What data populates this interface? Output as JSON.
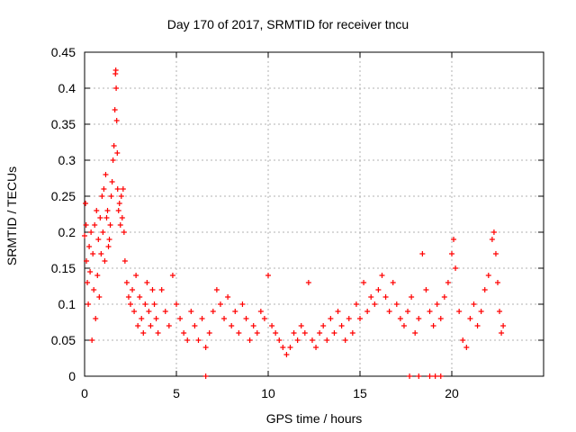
{
  "chart_data": {
    "type": "scatter",
    "title": "Day 170 of 2017, SRMTID for receiver tncu",
    "xlabel": "GPS time / hours",
    "ylabel": "SRMTID / TECUs",
    "xlim": [
      0,
      25
    ],
    "ylim": [
      0,
      0.45
    ],
    "x_ticks": [
      0,
      5,
      10,
      15,
      20
    ],
    "x_tick_labels": [
      "0",
      "5",
      "10",
      "15",
      "20"
    ],
    "y_ticks": [
      0,
      0.05,
      0.1,
      0.15,
      0.2,
      0.25,
      0.3,
      0.35,
      0.4,
      0.45
    ],
    "y_tick_labels": [
      "0",
      "0.05",
      "0.1",
      "0.15",
      "0.2",
      "0.25",
      "0.3",
      "0.35",
      "0.4",
      "0.45"
    ],
    "grid": true,
    "legend": "none",
    "marker": "+",
    "colors": {
      "series": "#ff0000",
      "grid": "#b0b0b0",
      "axis": "#000000"
    },
    "series": [
      {
        "name": "SRMTID",
        "points": [
          [
            0.0,
            0.195
          ],
          [
            0.05,
            0.24
          ],
          [
            0.08,
            0.21
          ],
          [
            0.1,
            0.16
          ],
          [
            0.15,
            0.13
          ],
          [
            0.2,
            0.1
          ],
          [
            0.25,
            0.18
          ],
          [
            0.3,
            0.145
          ],
          [
            0.35,
            0.2
          ],
          [
            0.4,
            0.05
          ],
          [
            0.45,
            0.17
          ],
          [
            0.5,
            0.12
          ],
          [
            0.55,
            0.21
          ],
          [
            0.6,
            0.08
          ],
          [
            0.65,
            0.23
          ],
          [
            0.7,
            0.14
          ],
          [
            0.75,
            0.19
          ],
          [
            0.8,
            0.11
          ],
          [
            0.85,
            0.22
          ],
          [
            0.9,
            0.17
          ],
          [
            0.95,
            0.25
          ],
          [
            1.0,
            0.2
          ],
          [
            1.05,
            0.26
          ],
          [
            1.1,
            0.16
          ],
          [
            1.15,
            0.28
          ],
          [
            1.2,
            0.22
          ],
          [
            1.25,
            0.23
          ],
          [
            1.3,
            0.18
          ],
          [
            1.35,
            0.19
          ],
          [
            1.4,
            0.21
          ],
          [
            1.45,
            0.25
          ],
          [
            1.5,
            0.27
          ],
          [
            1.55,
            0.3
          ],
          [
            1.6,
            0.32
          ],
          [
            1.65,
            0.37
          ],
          [
            1.68,
            0.42
          ],
          [
            1.7,
            0.425
          ],
          [
            1.72,
            0.4
          ],
          [
            1.75,
            0.355
          ],
          [
            1.78,
            0.31
          ],
          [
            1.8,
            0.26
          ],
          [
            1.85,
            0.23
          ],
          [
            1.9,
            0.24
          ],
          [
            1.95,
            0.21
          ],
          [
            2.0,
            0.25
          ],
          [
            2.05,
            0.22
          ],
          [
            2.1,
            0.26
          ],
          [
            2.15,
            0.2
          ],
          [
            2.2,
            0.16
          ],
          [
            2.3,
            0.13
          ],
          [
            2.4,
            0.11
          ],
          [
            2.5,
            0.1
          ],
          [
            2.6,
            0.12
          ],
          [
            2.7,
            0.09
          ],
          [
            2.8,
            0.14
          ],
          [
            2.9,
            0.07
          ],
          [
            3.0,
            0.11
          ],
          [
            3.1,
            0.08
          ],
          [
            3.2,
            0.06
          ],
          [
            3.3,
            0.1
          ],
          [
            3.4,
            0.13
          ],
          [
            3.5,
            0.09
          ],
          [
            3.6,
            0.07
          ],
          [
            3.7,
            0.12
          ],
          [
            3.8,
            0.1
          ],
          [
            3.9,
            0.08
          ],
          [
            4.0,
            0.06
          ],
          [
            4.2,
            0.12
          ],
          [
            4.4,
            0.09
          ],
          [
            4.6,
            0.07
          ],
          [
            4.8,
            0.14
          ],
          [
            5.0,
            0.1
          ],
          [
            5.2,
            0.08
          ],
          [
            5.4,
            0.06
          ],
          [
            5.6,
            0.05
          ],
          [
            5.8,
            0.09
          ],
          [
            6.0,
            0.07
          ],
          [
            6.2,
            0.05
          ],
          [
            6.4,
            0.08
          ],
          [
            6.6,
            0.04
          ],
          [
            6.8,
            0.06
          ],
          [
            7.0,
            0.09
          ],
          [
            7.2,
            0.12
          ],
          [
            7.4,
            0.1
          ],
          [
            7.6,
            0.08
          ],
          [
            7.8,
            0.11
          ],
          [
            8.0,
            0.07
          ],
          [
            8.2,
            0.09
          ],
          [
            8.4,
            0.06
          ],
          [
            8.6,
            0.1
          ],
          [
            8.8,
            0.08
          ],
          [
            9.0,
            0.05
          ],
          [
            9.2,
            0.07
          ],
          [
            9.4,
            0.06
          ],
          [
            9.6,
            0.09
          ],
          [
            9.8,
            0.08
          ],
          [
            10.0,
            0.14
          ],
          [
            10.2,
            0.07
          ],
          [
            10.4,
            0.06
          ],
          [
            10.6,
            0.05
          ],
          [
            10.8,
            0.04
          ],
          [
            11.0,
            0.03
          ],
          [
            11.2,
            0.04
          ],
          [
            11.4,
            0.06
          ],
          [
            11.6,
            0.05
          ],
          [
            11.8,
            0.07
          ],
          [
            12.0,
            0.06
          ],
          [
            12.2,
            0.13
          ],
          [
            12.4,
            0.05
          ],
          [
            12.6,
            0.04
          ],
          [
            12.8,
            0.06
          ],
          [
            13.0,
            0.07
          ],
          [
            13.2,
            0.05
          ],
          [
            13.4,
            0.08
          ],
          [
            13.6,
            0.06
          ],
          [
            13.8,
            0.09
          ],
          [
            14.0,
            0.07
          ],
          [
            14.2,
            0.05
          ],
          [
            14.4,
            0.08
          ],
          [
            14.6,
            0.06
          ],
          [
            14.8,
            0.1
          ],
          [
            15.0,
            0.08
          ],
          [
            15.2,
            0.13
          ],
          [
            15.4,
            0.09
          ],
          [
            15.6,
            0.11
          ],
          [
            15.8,
            0.1
          ],
          [
            16.0,
            0.12
          ],
          [
            16.2,
            0.14
          ],
          [
            16.4,
            0.11
          ],
          [
            16.6,
            0.09
          ],
          [
            16.8,
            0.13
          ],
          [
            17.0,
            0.1
          ],
          [
            17.2,
            0.08
          ],
          [
            17.4,
            0.07
          ],
          [
            17.6,
            0.09
          ],
          [
            17.8,
            0.11
          ],
          [
            18.0,
            0.06
          ],
          [
            18.2,
            0.08
          ],
          [
            18.4,
            0.17
          ],
          [
            18.6,
            0.12
          ],
          [
            18.8,
            0.09
          ],
          [
            19.0,
            0.07
          ],
          [
            19.2,
            0.1
          ],
          [
            19.4,
            0.08
          ],
          [
            19.6,
            0.11
          ],
          [
            19.8,
            0.13
          ],
          [
            20.0,
            0.17
          ],
          [
            20.1,
            0.19
          ],
          [
            20.2,
            0.15
          ],
          [
            20.4,
            0.09
          ],
          [
            20.6,
            0.05
          ],
          [
            20.8,
            0.04
          ],
          [
            21.0,
            0.08
          ],
          [
            21.2,
            0.1
          ],
          [
            21.4,
            0.07
          ],
          [
            21.6,
            0.09
          ],
          [
            21.8,
            0.12
          ],
          [
            22.0,
            0.14
          ],
          [
            22.2,
            0.19
          ],
          [
            22.3,
            0.2
          ],
          [
            22.4,
            0.17
          ],
          [
            22.5,
            0.13
          ],
          [
            22.6,
            0.09
          ],
          [
            22.7,
            0.06
          ],
          [
            22.8,
            0.07
          ],
          [
            6.6,
            0.0
          ],
          [
            17.7,
            0.0
          ],
          [
            18.2,
            0.0
          ],
          [
            18.8,
            0.0
          ],
          [
            19.1,
            0.0
          ],
          [
            19.4,
            0.0
          ]
        ]
      }
    ]
  }
}
